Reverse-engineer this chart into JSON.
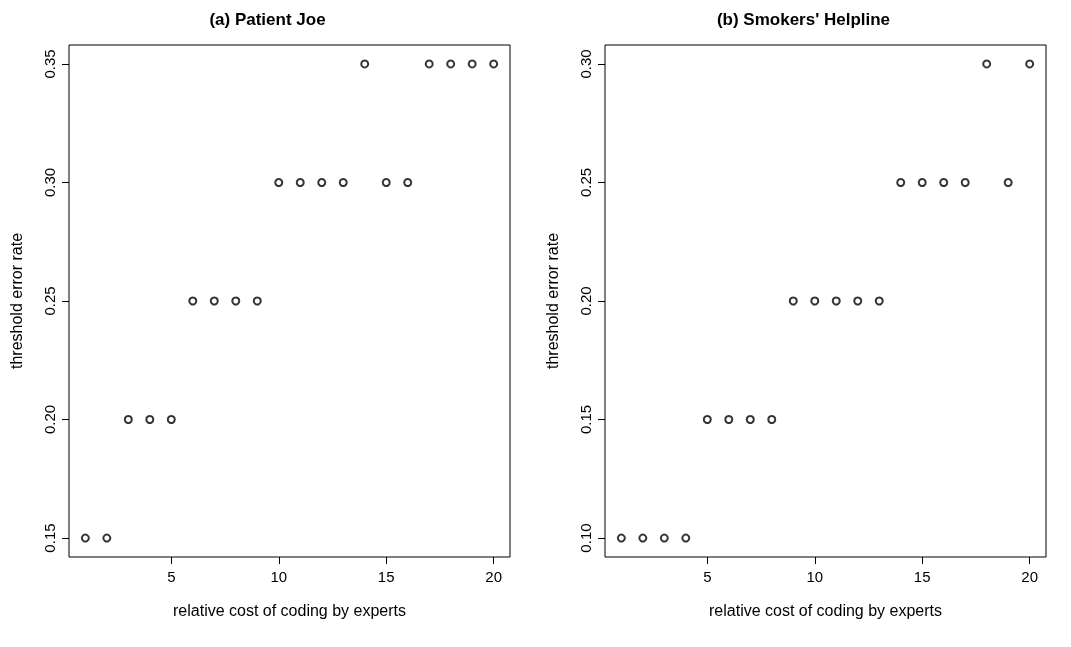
{
  "chart_data": [
    {
      "type": "scatter",
      "title": "(a) Patient Joe",
      "xlabel": "relative cost of coding by experts",
      "ylabel": "threshold error rate",
      "marker": "circle",
      "grid": false,
      "x": [
        1,
        2,
        3,
        4,
        5,
        6,
        7,
        8,
        9,
        10,
        11,
        12,
        13,
        14,
        15,
        16,
        17,
        18,
        19,
        20
      ],
      "series": [
        {
          "color": "#000000",
          "values": [
            0.15,
            0.15,
            0.2,
            0.2,
            0.2,
            0.25,
            0.25,
            0.25,
            0.25,
            0.3,
            0.3,
            0.3,
            0.3,
            0.35,
            0.3,
            0.3,
            0.35,
            0.35,
            0.35,
            0.35
          ]
        }
      ],
      "xlim": [
        0.24,
        20.76
      ],
      "xticks": [
        5,
        10,
        15,
        20
      ],
      "ylim": [
        0.142,
        0.358
      ],
      "yticks": [
        {
          "value": 0.15,
          "label": "0.15"
        },
        {
          "value": 0.2,
          "label": "0.20"
        },
        {
          "value": 0.25,
          "label": "0.25"
        },
        {
          "value": 0.3,
          "label": "0.30"
        },
        {
          "value": 0.35,
          "label": "0.35"
        }
      ]
    },
    {
      "type": "scatter",
      "title": "(b) Smokers' Helpline",
      "xlabel": "relative cost of coding by experts",
      "ylabel": "threshold error rate",
      "marker": "circle",
      "grid": false,
      "x": [
        1,
        2,
        3,
        4,
        5,
        6,
        7,
        8,
        9,
        10,
        11,
        12,
        13,
        14,
        15,
        16,
        17,
        18,
        19,
        20
      ],
      "series": [
        {
          "color": "#000000",
          "values": [
            0.1,
            0.1,
            0.1,
            0.1,
            0.15,
            0.15,
            0.15,
            0.15,
            0.2,
            0.2,
            0.2,
            0.2,
            0.2,
            0.25,
            0.25,
            0.25,
            0.25,
            0.3,
            0.25,
            0.3
          ]
        }
      ],
      "xlim": [
        0.24,
        20.76
      ],
      "xticks": [
        5,
        10,
        15,
        20
      ],
      "ylim": [
        0.092,
        0.308
      ],
      "yticks": [
        {
          "value": 0.1,
          "label": "0.10"
        },
        {
          "value": 0.15,
          "label": "0.15"
        },
        {
          "value": 0.2,
          "label": "0.20"
        },
        {
          "value": 0.25,
          "label": "0.25"
        },
        {
          "value": 0.3,
          "label": "0.30"
        }
      ]
    }
  ]
}
